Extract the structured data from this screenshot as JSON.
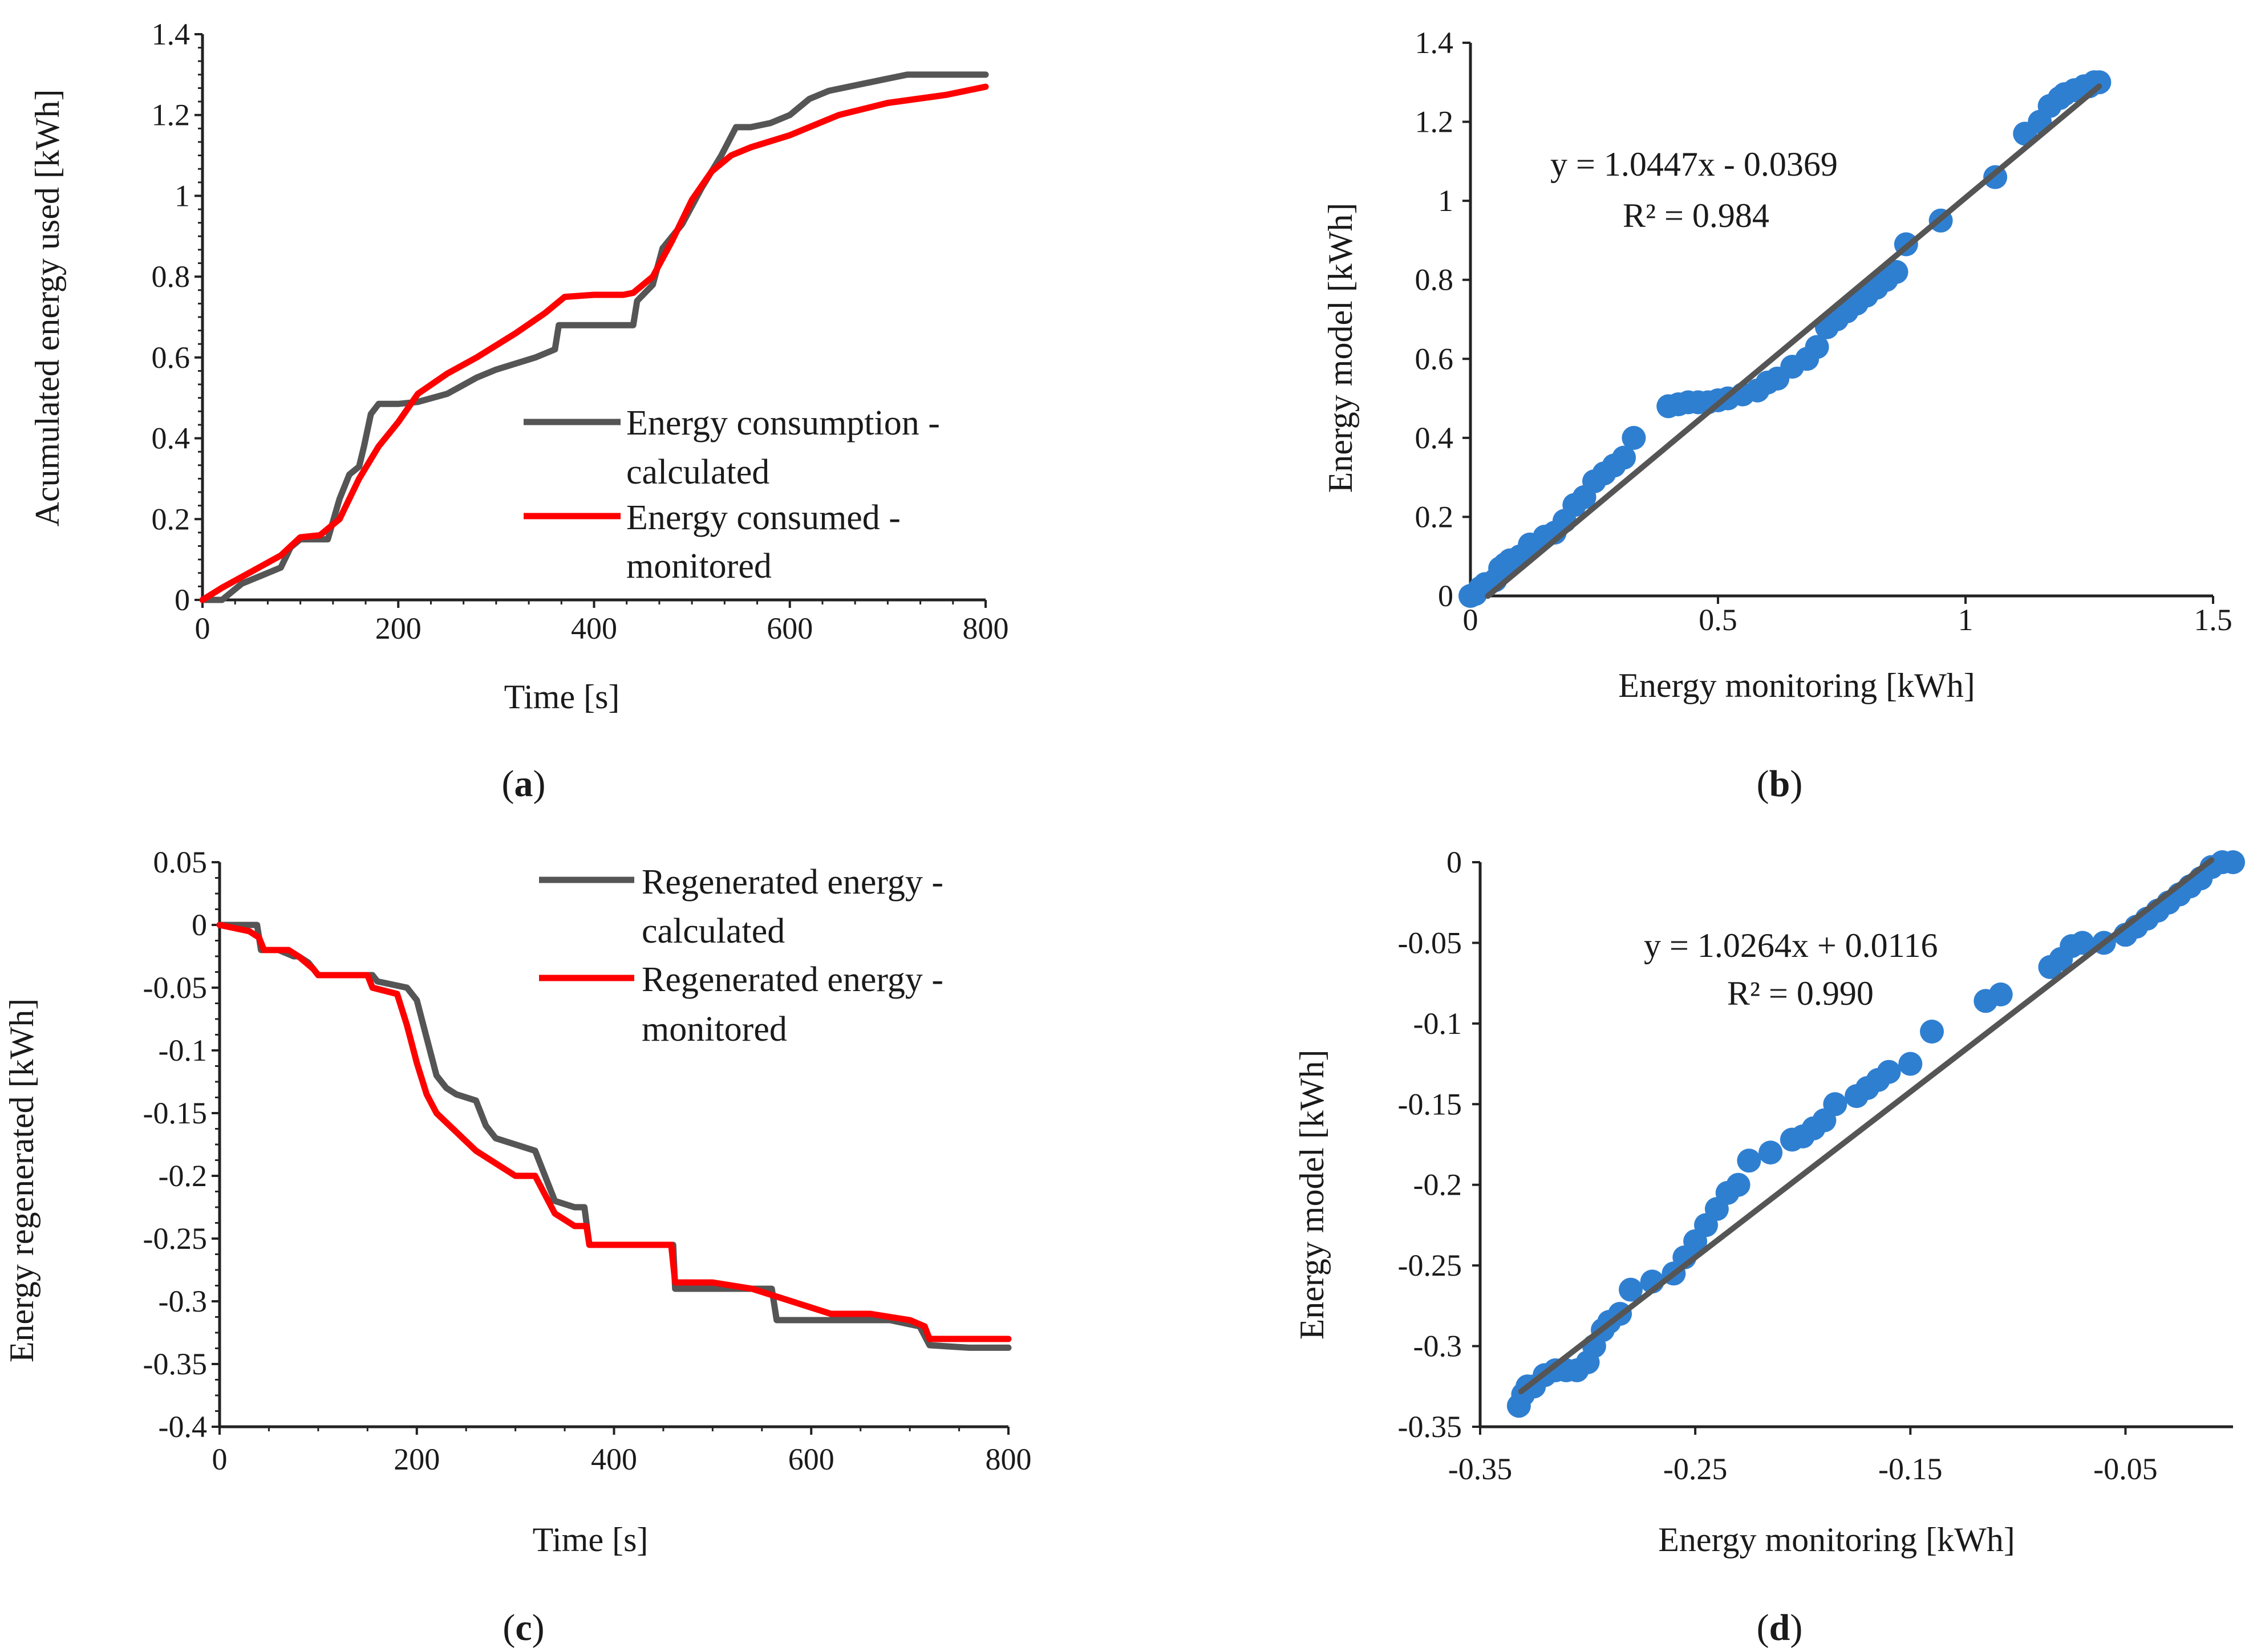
{
  "colors": {
    "calculated": "#555555",
    "monitored": "#ff0000",
    "points": "#2f7fd1",
    "fit": "#555555",
    "axis": "#222222"
  },
  "chart_data": [
    {
      "panel": "a",
      "type": "line",
      "title": "",
      "xlabel": "Time [s]",
      "ylabel": "Acumulated energy used [kWh]",
      "xlim": [
        0,
        800
      ],
      "ylim": [
        0,
        1.4
      ],
      "xticks": [
        "0",
        "200",
        "400",
        "600",
        "800"
      ],
      "yticks": [
        "0",
        "0.2",
        "0.4",
        "0.6",
        "0.8",
        "1",
        "1.2",
        "1.4"
      ],
      "legend_position": "center-right",
      "series": [
        {
          "name": "Energy consumption - calculated",
          "legend_lines": [
            "Energy consumption -",
            "calculated"
          ],
          "color_key": "calculated",
          "x": [
            0,
            20,
            40,
            60,
            80,
            90,
            100,
            110,
            128,
            140,
            150,
            160,
            165,
            172,
            180,
            200,
            220,
            235,
            250,
            265,
            280,
            300,
            320,
            340,
            350,
            360,
            364,
            380,
            400,
            430,
            440,
            444,
            460,
            470,
            490,
            510,
            530,
            545,
            560,
            580,
            600,
            620,
            640,
            660,
            680,
            700,
            720,
            760,
            800
          ],
          "y": [
            0,
            0,
            0.04,
            0.06,
            0.08,
            0.13,
            0.15,
            0.15,
            0.15,
            0.25,
            0.31,
            0.33,
            0.38,
            0.46,
            0.485,
            0.485,
            0.49,
            0.5,
            0.51,
            0.53,
            0.55,
            0.57,
            0.585,
            0.6,
            0.61,
            0.62,
            0.68,
            0.68,
            0.68,
            0.68,
            0.68,
            0.74,
            0.78,
            0.87,
            0.93,
            1.02,
            1.1,
            1.17,
            1.17,
            1.18,
            1.2,
            1.24,
            1.26,
            1.27,
            1.28,
            1.29,
            1.3,
            1.3,
            1.3
          ]
        },
        {
          "name": "Energy consumed - monitored",
          "legend_lines": [
            "Energy consumed -",
            "monitored"
          ],
          "color_key": "monitored",
          "x": [
            0,
            20,
            50,
            80,
            100,
            120,
            140,
            160,
            180,
            200,
            220,
            250,
            280,
            320,
            350,
            370,
            400,
            430,
            440,
            460,
            480,
            500,
            520,
            540,
            560,
            600,
            650,
            700,
            760,
            800
          ],
          "y": [
            0,
            0.03,
            0.07,
            0.11,
            0.155,
            0.16,
            0.2,
            0.3,
            0.38,
            0.44,
            0.51,
            0.56,
            0.6,
            0.66,
            0.71,
            0.75,
            0.755,
            0.755,
            0.76,
            0.8,
            0.89,
            0.99,
            1.06,
            1.1,
            1.12,
            1.15,
            1.2,
            1.23,
            1.25,
            1.27
          ]
        }
      ]
    },
    {
      "panel": "b",
      "type": "scatter",
      "title": "",
      "xlabel": "Energy monitoring [kWh]",
      "ylabel": "Energy model [kWh]",
      "xlim": [
        0,
        1.5
      ],
      "ylim": [
        0,
        1.4
      ],
      "xticks": [
        "0",
        "0.5",
        "1",
        "1.5"
      ],
      "yticks": [
        "0",
        "0.2",
        "0.4",
        "0.6",
        "0.8",
        "1",
        "1.2",
        "1.4"
      ],
      "equation": "y = 1.0447x - 0.0369",
      "r2": "R² = 0.984",
      "fit": {
        "slope": 1.0447,
        "intercept": -0.0369,
        "x_range": [
          0.035,
          1.27
        ]
      },
      "points_x": [
        0,
        0.01,
        0.02,
        0.03,
        0.05,
        0.06,
        0.07,
        0.08,
        0.1,
        0.12,
        0.15,
        0.17,
        0.19,
        0.21,
        0.23,
        0.25,
        0.27,
        0.29,
        0.31,
        0.33,
        0.4,
        0.42,
        0.44,
        0.46,
        0.48,
        0.5,
        0.52,
        0.55,
        0.58,
        0.6,
        0.62,
        0.65,
        0.68,
        0.7,
        0.72,
        0.74,
        0.76,
        0.78,
        0.8,
        0.82,
        0.84,
        0.86,
        0.88,
        0.95,
        1.06,
        1.12,
        1.15,
        1.17,
        1.19,
        1.2,
        1.22,
        1.24,
        1.25,
        1.26,
        1.27
      ],
      "points_y": [
        0,
        0.005,
        0.02,
        0.03,
        0.04,
        0.07,
        0.08,
        0.09,
        0.1,
        0.13,
        0.15,
        0.16,
        0.19,
        0.23,
        0.25,
        0.29,
        0.31,
        0.33,
        0.35,
        0.4,
        0.48,
        0.485,
        0.49,
        0.49,
        0.49,
        0.495,
        0.5,
        0.51,
        0.52,
        0.54,
        0.55,
        0.58,
        0.6,
        0.63,
        0.68,
        0.7,
        0.72,
        0.74,
        0.76,
        0.78,
        0.8,
        0.82,
        0.89,
        0.95,
        1.06,
        1.17,
        1.2,
        1.24,
        1.26,
        1.27,
        1.28,
        1.29,
        1.29,
        1.3,
        1.3
      ]
    },
    {
      "panel": "c",
      "type": "line",
      "title": "",
      "xlabel": "Time [s]",
      "ylabel": "Energy regenerated [kWh]",
      "xlim": [
        0,
        800
      ],
      "ylim": [
        -0.4,
        0.05
      ],
      "xticks": [
        "0",
        "200",
        "400",
        "600",
        "800"
      ],
      "yticks": [
        "0.05",
        "0",
        "-0.05",
        "-0.1",
        "-0.15",
        "-0.2",
        "-0.25",
        "-0.3",
        "-0.35",
        "-0.4"
      ],
      "legend_position": "top-right",
      "series": [
        {
          "name": "Regenerated energy - calculated",
          "legend_lines": [
            "Regenerated energy -",
            "calculated"
          ],
          "color_key": "calculated",
          "x": [
            0,
            38,
            42,
            60,
            75,
            80,
            90,
            100,
            155,
            160,
            190,
            200,
            210,
            220,
            230,
            240,
            260,
            270,
            280,
            300,
            320,
            330,
            340,
            360,
            370,
            375,
            420,
            455,
            460,
            462,
            500,
            540,
            560,
            565,
            600,
            680,
            710,
            720,
            760,
            800
          ],
          "y": [
            0,
            0,
            -0.02,
            -0.02,
            -0.025,
            -0.025,
            -0.03,
            -0.04,
            -0.04,
            -0.045,
            -0.05,
            -0.06,
            -0.09,
            -0.12,
            -0.13,
            -0.135,
            -0.14,
            -0.16,
            -0.17,
            -0.175,
            -0.18,
            -0.2,
            -0.22,
            -0.225,
            -0.225,
            -0.255,
            -0.255,
            -0.255,
            -0.255,
            -0.29,
            -0.29,
            -0.29,
            -0.29,
            -0.315,
            -0.315,
            -0.315,
            -0.32,
            -0.335,
            -0.337,
            -0.337
          ]
        },
        {
          "name": "Regenerated energy - monitored",
          "legend_lines": [
            "Regenerated energy -",
            "monitored"
          ],
          "color_key": "monitored",
          "x": [
            0,
            30,
            40,
            45,
            70,
            80,
            95,
            100,
            150,
            155,
            180,
            190,
            200,
            210,
            220,
            240,
            260,
            280,
            300,
            320,
            340,
            360,
            372,
            375,
            400,
            458,
            462,
            470,
            500,
            540,
            580,
            620,
            660,
            700,
            715,
            720,
            760,
            800
          ],
          "y": [
            0,
            -0.005,
            -0.01,
            -0.02,
            -0.02,
            -0.025,
            -0.035,
            -0.04,
            -0.04,
            -0.05,
            -0.055,
            -0.08,
            -0.11,
            -0.135,
            -0.15,
            -0.165,
            -0.18,
            -0.19,
            -0.2,
            -0.2,
            -0.23,
            -0.24,
            -0.24,
            -0.255,
            -0.255,
            -0.255,
            -0.285,
            -0.285,
            -0.285,
            -0.29,
            -0.3,
            -0.31,
            -0.31,
            -0.315,
            -0.32,
            -0.33,
            -0.33,
            -0.33
          ]
        }
      ]
    },
    {
      "panel": "d",
      "type": "scatter",
      "title": "",
      "xlabel": "Energy monitoring [kWh]",
      "ylabel": "Energy model [kWh]",
      "xlim": [
        -0.35,
        0.0
      ],
      "ylim": [
        -0.35,
        0
      ],
      "xticks": [
        "-0.35",
        "-0.25",
        "-0.15",
        "-0.05"
      ],
      "xtick_values": [
        -0.35,
        -0.25,
        -0.15,
        -0.05
      ],
      "yticks": [
        "0",
        "-0.05",
        "-0.1",
        "-0.15",
        "-0.2",
        "-0.25",
        "-0.3",
        "-0.35"
      ],
      "equation": "y = 1.0264x + 0.0116",
      "r2": "R² = 0.990",
      "fit": {
        "slope": 1.0264,
        "intercept": 0.0116,
        "x_range": [
          -0.331,
          -0.01
        ]
      },
      "points_x": [
        -0.332,
        -0.33,
        -0.328,
        -0.325,
        -0.32,
        -0.315,
        -0.31,
        -0.305,
        -0.3,
        -0.297,
        -0.293,
        -0.29,
        -0.285,
        -0.28,
        -0.27,
        -0.26,
        -0.255,
        -0.25,
        -0.245,
        -0.24,
        -0.235,
        -0.23,
        -0.225,
        -0.215,
        -0.205,
        -0.2,
        -0.195,
        -0.19,
        -0.185,
        -0.175,
        -0.17,
        -0.165,
        -0.16,
        -0.15,
        -0.14,
        -0.115,
        -0.108,
        -0.085,
        -0.08,
        -0.075,
        -0.07,
        -0.06,
        -0.05,
        -0.045,
        -0.04,
        -0.035,
        -0.03,
        -0.025,
        -0.02,
        -0.015,
        -0.01,
        -0.005,
        0
      ],
      "points_y": [
        -0.337,
        -0.33,
        -0.325,
        -0.325,
        -0.318,
        -0.315,
        -0.315,
        -0.315,
        -0.31,
        -0.3,
        -0.29,
        -0.285,
        -0.28,
        -0.265,
        -0.26,
        -0.255,
        -0.245,
        -0.235,
        -0.225,
        -0.215,
        -0.205,
        -0.2,
        -0.185,
        -0.18,
        -0.172,
        -0.17,
        -0.165,
        -0.16,
        -0.15,
        -0.145,
        -0.14,
        -0.135,
        -0.13,
        -0.125,
        -0.105,
        -0.086,
        -0.082,
        -0.065,
        -0.06,
        -0.052,
        -0.05,
        -0.05,
        -0.045,
        -0.04,
        -0.035,
        -0.03,
        -0.025,
        -0.02,
        -0.015,
        -0.01,
        -0.003,
        0,
        0
      ]
    }
  ],
  "panel_labels": {
    "a": {
      "open": "(",
      "letter": "a",
      "close": ")"
    },
    "b": {
      "open": "(",
      "letter": "b",
      "close": ")"
    },
    "c": {
      "open": "(",
      "letter": "c",
      "close": ")"
    },
    "d": {
      "open": "(",
      "letter": "d",
      "close": ")"
    }
  }
}
